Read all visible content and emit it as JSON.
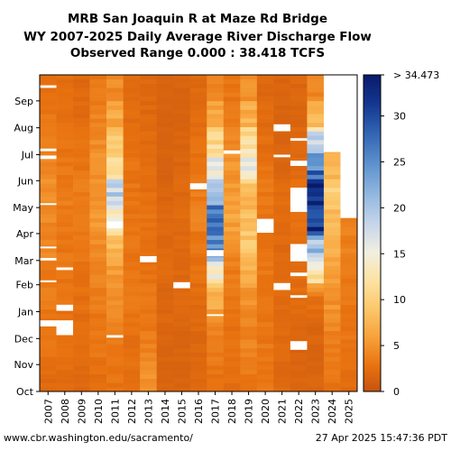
{
  "chart_data": {
    "type": "heatmap",
    "title_lines": [
      "MRB San Joaquin R at Maze Rd Bridge",
      "WY 2007-2025 Daily Average River Discharge Flow",
      "Observed Range 0.000 : 38.418 TCFS"
    ],
    "x_categories": [
      "2007",
      "2008",
      "2009",
      "2010",
      "2011",
      "2012",
      "2013",
      "2014",
      "2015",
      "2016",
      "2017",
      "2018",
      "2019",
      "2020",
      "2021",
      "2022",
      "2023",
      "2024",
      "2025"
    ],
    "y_ticks": [
      "Oct",
      "Nov",
      "Dec",
      "Jan",
      "Feb",
      "Mar",
      "Apr",
      "May",
      "Jun",
      "Jul",
      "Aug",
      "Sep"
    ],
    "colorbar": {
      "min": 0,
      "max": 34.473,
      "top_label": "> 34.473",
      "ticks": [
        "0",
        "5",
        "10",
        "15",
        "20",
        "25",
        "30"
      ],
      "tick_values": [
        0,
        5,
        10,
        15,
        20,
        25,
        30
      ],
      "stops": [
        [
          0.0,
          "#c65210"
        ],
        [
          0.08,
          "#e8720f"
        ],
        [
          0.17,
          "#f7a13a"
        ],
        [
          0.26,
          "#fcc76a"
        ],
        [
          0.35,
          "#fde2a2"
        ],
        [
          0.44,
          "#f1efe0"
        ],
        [
          0.53,
          "#c6d5ea"
        ],
        [
          0.62,
          "#93b8e0"
        ],
        [
          0.72,
          "#5c91cd"
        ],
        [
          0.82,
          "#2f62b2"
        ],
        [
          0.91,
          "#13368f"
        ],
        [
          1.0,
          "#0a1a6b"
        ]
      ]
    },
    "z_unit": "TCFS",
    "monthly_flow": {
      "2007": [
        2.2,
        2.8,
        3.0,
        3.3,
        3.4,
        4.0,
        4.4,
        4.6,
        4.2,
        3.5,
        3.0,
        2.6
      ],
      "2008": [
        2.4,
        2.6,
        2.8,
        2.9,
        3.0,
        3.2,
        3.0,
        3.4,
        3.2,
        2.8,
        2.6,
        2.4
      ],
      "2009": [
        2.0,
        2.2,
        2.4,
        2.5,
        2.8,
        3.0,
        3.2,
        3.4,
        3.0,
        2.6,
        2.2,
        2.0
      ],
      "2010": [
        2.4,
        3.0,
        3.2,
        3.4,
        3.8,
        4.4,
        5.0,
        5.4,
        5.0,
        4.6,
        3.8,
        3.2
      ],
      "2011": [
        2.8,
        3.2,
        4.0,
        4.6,
        5.6,
        8.0,
        14.0,
        19.0,
        12.0,
        9.0,
        6.4,
        4.4
      ],
      "2012": [
        2.4,
        2.6,
        2.8,
        3.0,
        3.0,
        3.2,
        3.0,
        3.0,
        2.8,
        2.6,
        2.4,
        2.2
      ],
      "2013": [
        4.6,
        3.8,
        3.2,
        3.0,
        2.8,
        2.6,
        2.8,
        2.6,
        2.4,
        2.2,
        2.0,
        2.0
      ],
      "2014": [
        1.6,
        1.6,
        1.8,
        1.8,
        2.0,
        2.0,
        1.8,
        1.6,
        1.4,
        1.4,
        1.4,
        1.4
      ],
      "2015": [
        1.6,
        1.6,
        1.8,
        2.0,
        2.0,
        2.0,
        2.2,
        2.0,
        1.8,
        1.6,
        1.6,
        1.6
      ],
      "2016": [
        1.8,
        1.8,
        2.0,
        2.2,
        2.6,
        3.0,
        3.6,
        3.4,
        3.0,
        2.6,
        2.2,
        2.0
      ],
      "2017": [
        2.8,
        3.4,
        4.2,
        6.6,
        14.0,
        26.0,
        30.0,
        20.0,
        16.0,
        11.0,
        6.5,
        4.0
      ],
      "2018": [
        2.4,
        2.6,
        2.8,
        3.0,
        3.4,
        4.4,
        6.0,
        5.8,
        5.0,
        4.2,
        3.4,
        3.0
      ],
      "2019": [
        3.2,
        3.8,
        4.0,
        5.0,
        6.8,
        9.0,
        8.2,
        7.0,
        15.0,
        12.0,
        7.0,
        4.8
      ],
      "2020": [
        3.0,
        3.2,
        3.0,
        3.0,
        3.0,
        2.8,
        3.0,
        3.2,
        2.8,
        2.4,
        2.2,
        2.0
      ],
      "2021": [
        2.0,
        2.0,
        2.2,
        2.2,
        2.2,
        2.0,
        2.2,
        2.2,
        1.8,
        1.6,
        1.6,
        1.6
      ],
      "2022": [
        1.6,
        1.6,
        1.8,
        2.2,
        2.4,
        2.6,
        2.8,
        2.6,
        2.2,
        2.0,
        1.8,
        1.8
      ],
      "2023": [
        1.6,
        1.6,
        1.8,
        2.6,
        12.0,
        20.0,
        32.0,
        34.0,
        26.0,
        18.0,
        8.0,
        4.0
      ],
      "2024": [
        3.0,
        3.6,
        4.0,
        5.0,
        5.6,
        6.8,
        8.0,
        9.4,
        7.4,
        5.6,
        4.0,
        3.2
      ],
      "2025": [
        2.4,
        2.8,
        3.0,
        3.2,
        3.4,
        3.6,
        3.8
      ]
    },
    "missing_cells": {
      "2007": [
        [
          75,
          82
        ],
        [
          126,
          128
        ],
        [
          151,
          154
        ],
        [
          165,
          167
        ],
        [
          215,
          217
        ],
        [
          268,
          272
        ],
        [
          277,
          280
        ],
        [
          350,
          353
        ]
      ],
      "2008": [
        [
          65,
          82
        ],
        [
          93,
          100
        ],
        [
          140,
          143
        ]
      ],
      "2011": [
        [
          62,
          65
        ],
        [
          188,
          196
        ]
      ],
      "2013": [
        [
          149,
          156
        ]
      ],
      "2015": [
        [
          119,
          126
        ]
      ],
      "2016": [
        [
          233,
          237
        ],
        [
          236,
          240
        ]
      ],
      "2017": [
        [
          87,
          89
        ],
        [
          156,
          163
        ]
      ],
      "2018": [
        [
          274,
          278
        ]
      ],
      "2020": [
        [
          183,
          199
        ]
      ],
      "2021": [
        [
          117,
          125
        ],
        [
          270,
          273
        ],
        [
          300,
          308
        ]
      ],
      "2022": [
        [
          48,
          58
        ],
        [
          108,
          111
        ],
        [
          133,
          137
        ],
        [
          150,
          170
        ],
        [
          207,
          235
        ],
        [
          260,
          266
        ],
        [
          289,
          292
        ]
      ],
      "2024": [
        [
          276,
          365
        ]
      ],
      "2025": [
        [
          200,
          365
        ]
      ]
    }
  },
  "footer": {
    "url": "www.cbr.washington.edu/sacramento/",
    "timestamp": "27 Apr 2025 15:47:36 PDT"
  }
}
